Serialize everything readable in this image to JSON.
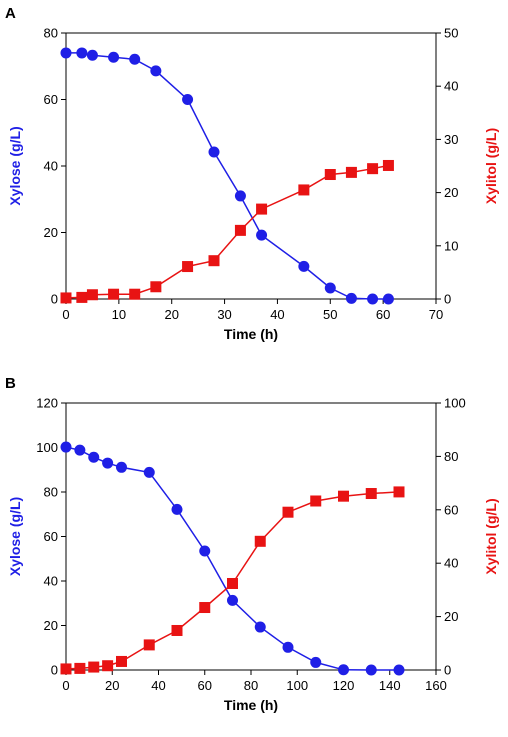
{
  "colors": {
    "xylose": "#1f1fe6",
    "xylitol": "#e81313",
    "axis": "#000000"
  },
  "chart_data": [
    {
      "type": "line",
      "panel_label": "A",
      "xlabel": "Time (h)",
      "ylabel_left": "Xylose (g/L)",
      "ylabel_right": "Xylitol (g/L)",
      "xlim": [
        0,
        70
      ],
      "ylim_left": [
        0,
        80
      ],
      "ylim_right": [
        0,
        50
      ],
      "x_ticks": [
        0,
        10,
        20,
        30,
        40,
        50,
        60,
        70
      ],
      "y_left_ticks": [
        0,
        20,
        40,
        60,
        80
      ],
      "y_right_ticks": [
        0,
        10,
        20,
        30,
        40,
        50
      ],
      "grid": false,
      "series": [
        {
          "axis": "left",
          "marker": "circle",
          "color": "#1f1fe6",
          "x": [
            0,
            3,
            5,
            9,
            13,
            17,
            23,
            28,
            33,
            37,
            45,
            50,
            54,
            58,
            61
          ],
          "y": [
            74,
            74,
            73.3,
            72.7,
            72.1,
            68.6,
            60,
            44.2,
            31,
            19.2,
            9.8,
            3.3,
            0.2,
            0,
            0
          ]
        },
        {
          "axis": "right",
          "marker": "square",
          "color": "#e81313",
          "x": [
            0,
            3,
            5,
            9,
            13,
            17,
            23,
            28,
            33,
            37,
            45,
            50,
            54,
            58,
            61
          ],
          "y": [
            0.2,
            0.3,
            0.8,
            0.9,
            0.9,
            2.3,
            6.1,
            7.2,
            12.9,
            16.9,
            20.5,
            23.4,
            23.8,
            24.5,
            25.1
          ]
        }
      ]
    },
    {
      "type": "line",
      "panel_label": "B",
      "xlabel": "Time (h)",
      "ylabel_left": "Xylose (g/L)",
      "ylabel_right": "Xylitol (g/L)",
      "xlim": [
        0,
        160
      ],
      "ylim_left": [
        0,
        120
      ],
      "ylim_right": [
        0,
        100
      ],
      "x_ticks": [
        0,
        20,
        40,
        60,
        80,
        100,
        120,
        140,
        160
      ],
      "y_left_ticks": [
        0,
        20,
        40,
        60,
        80,
        100,
        120
      ],
      "y_right_ticks": [
        0,
        20,
        40,
        60,
        80,
        100
      ],
      "grid": false,
      "series": [
        {
          "axis": "left",
          "marker": "circle",
          "color": "#1f1fe6",
          "x": [
            0,
            6,
            12,
            18,
            24,
            36,
            48,
            60,
            72,
            84,
            96,
            108,
            120,
            132,
            144
          ],
          "y": [
            100.2,
            98.8,
            95.6,
            93,
            91.1,
            88.8,
            72.2,
            53.5,
            31.3,
            19.3,
            10.2,
            3.4,
            0.1,
            0,
            0
          ]
        },
        {
          "axis": "right",
          "marker": "square",
          "color": "#e81313",
          "x": [
            0,
            6,
            12,
            18,
            24,
            36,
            48,
            60,
            72,
            84,
            96,
            108,
            120,
            132,
            144
          ],
          "y": [
            0.4,
            0.6,
            1.1,
            1.6,
            3.2,
            9.4,
            14.8,
            23.4,
            32.4,
            48.2,
            59.1,
            63.3,
            65.1,
            66.1,
            66.7
          ]
        }
      ]
    }
  ]
}
